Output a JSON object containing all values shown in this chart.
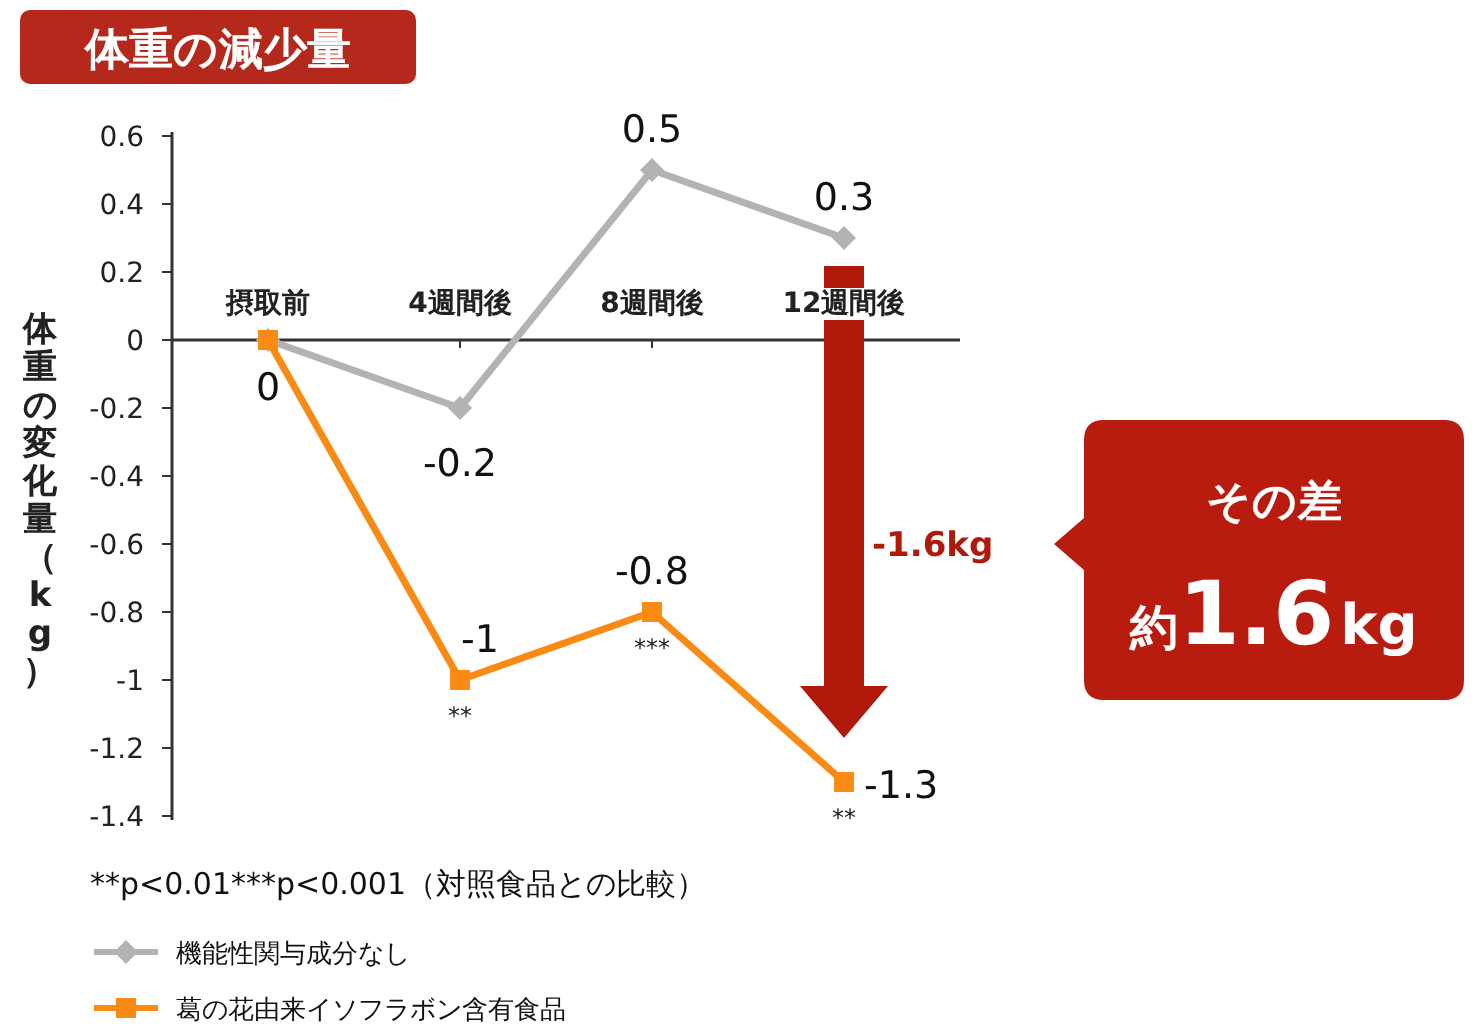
{
  "chart_data": {
    "type": "line",
    "title": "体重の減少量",
    "ylabel": "体重の変化量（kg）",
    "categories": [
      "摂取前",
      "4週間後",
      "8週間後",
      "12週間後"
    ],
    "series": [
      {
        "name": "機能性関与成分なし",
        "color": "#b3b3b3",
        "marker": "diamond",
        "values": [
          0,
          -0.2,
          0.5,
          0.3
        ],
        "value_labels": [
          null,
          "-0.2",
          "0.5",
          "0.3"
        ]
      },
      {
        "name": "葛の花由来イソフラボン含有食品",
        "color": "#f98a14",
        "marker": "square",
        "values": [
          0,
          -1,
          -0.8,
          -1.3
        ],
        "value_labels": [
          "0",
          "-1",
          "-0.8",
          "-1.3"
        ]
      }
    ],
    "ylim": [
      -1.4,
      0.6
    ],
    "yticks": [
      0.6,
      0.4,
      0.2,
      0,
      -0.2,
      -0.4,
      -0.6,
      -0.8,
      -1,
      -1.2,
      -1.4
    ],
    "legend": "bottom",
    "annotations": [
      {
        "text": "**",
        "x": "4週間後",
        "y": -1
      },
      {
        "text": "***",
        "x": "8週間後",
        "y": -0.8
      },
      {
        "text": "**",
        "x": "12週間後",
        "y": -1.3
      },
      "**p<0.01***p<0.001（対照食品との比較）",
      "-1.6kg",
      "その差",
      "約1.6kg"
    ]
  }
}
